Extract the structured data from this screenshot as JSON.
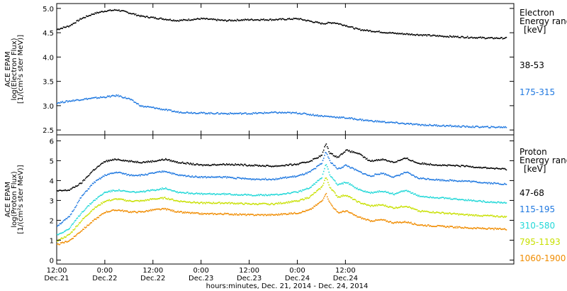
{
  "chart_data": [
    {
      "type": "scatter",
      "panel": "electron",
      "ylabel": [
        "ACE EPAM",
        "log(Electron Flux)",
        "[1/(cm²s ster MeV)]"
      ],
      "ylim": [
        2.4,
        5.1
      ],
      "yticks": [
        2.5,
        3.0,
        3.5,
        4.0,
        4.5,
        5.0
      ],
      "yticklabels": [
        "2.5",
        "3.0",
        "3.5",
        "4.0",
        "4.5",
        "5.0"
      ],
      "legend_title": [
        "Electron",
        "Energy ranges",
        "[keV]"
      ],
      "series": [
        {
          "name": "38-53",
          "color": "#000000",
          "points": [
            [
              0,
              4.58
            ],
            [
              3,
              4.65
            ],
            [
              6,
              4.8
            ],
            [
              9,
              4.9
            ],
            [
              12,
              4.96
            ],
            [
              15,
              4.98
            ],
            [
              18,
              4.92
            ],
            [
              21,
              4.85
            ],
            [
              24,
              4.82
            ],
            [
              30,
              4.76
            ],
            [
              36,
              4.8
            ],
            [
              42,
              4.76
            ],
            [
              48,
              4.78
            ],
            [
              54,
              4.78
            ],
            [
              60,
              4.8
            ],
            [
              66,
              4.7
            ],
            [
              69,
              4.72
            ],
            [
              72,
              4.66
            ],
            [
              75,
              4.58
            ],
            [
              78,
              4.55
            ],
            [
              84,
              4.5
            ],
            [
              90,
              4.47
            ],
            [
              96,
              4.44
            ],
            [
              102,
              4.42
            ],
            [
              108,
              4.4
            ],
            [
              112,
              4.4
            ]
          ]
        },
        {
          "name": "175-315",
          "color": "#1f78e0",
          "points": [
            [
              0,
              3.07
            ],
            [
              6,
              3.14
            ],
            [
              12,
              3.19
            ],
            [
              15,
              3.22
            ],
            [
              18,
              3.15
            ],
            [
              21,
              3.0
            ],
            [
              24,
              2.97
            ],
            [
              30,
              2.88
            ],
            [
              36,
              2.86
            ],
            [
              42,
              2.85
            ],
            [
              48,
              2.85
            ],
            [
              54,
              2.87
            ],
            [
              60,
              2.86
            ],
            [
              66,
              2.8
            ],
            [
              72,
              2.76
            ],
            [
              78,
              2.7
            ],
            [
              84,
              2.66
            ],
            [
              90,
              2.62
            ],
            [
              96,
              2.6
            ],
            [
              102,
              2.58
            ],
            [
              108,
              2.57
            ],
            [
              112,
              2.57
            ]
          ]
        }
      ]
    },
    {
      "type": "scatter",
      "panel": "proton",
      "ylabel": [
        "ACE EPAM",
        "log(Proton Flux)",
        "[1/(cm²s ster MeV)]"
      ],
      "ylim": [
        -0.2,
        6.3
      ],
      "yticks": [
        0,
        1,
        2,
        3,
        4,
        5,
        6
      ],
      "yticklabels": [
        "0",
        "1",
        "2",
        "3",
        "4",
        "5",
        "6"
      ],
      "legend_title": [
        "Proton",
        "Energy ranges",
        "[keV]"
      ],
      "series": [
        {
          "name": "47-68",
          "color": "#000000",
          "points": [
            [
              0,
              3.5
            ],
            [
              3,
              3.55
            ],
            [
              6,
              3.9
            ],
            [
              9,
              4.55
            ],
            [
              12,
              5.0
            ],
            [
              15,
              5.1
            ],
            [
              18,
              5.0
            ],
            [
              21,
              4.95
            ],
            [
              24,
              5.0
            ],
            [
              27,
              5.1
            ],
            [
              30,
              4.95
            ],
            [
              36,
              4.8
            ],
            [
              42,
              4.85
            ],
            [
              48,
              4.8
            ],
            [
              54,
              4.75
            ],
            [
              60,
              4.85
            ],
            [
              63,
              5.0
            ],
            [
              66,
              5.3
            ],
            [
              67,
              5.9
            ],
            [
              68,
              5.4
            ],
            [
              70,
              5.2
            ],
            [
              72,
              5.55
            ],
            [
              75,
              5.4
            ],
            [
              78,
              5.0
            ],
            [
              81,
              5.1
            ],
            [
              84,
              4.95
            ],
            [
              87,
              5.15
            ],
            [
              90,
              4.9
            ],
            [
              96,
              4.8
            ],
            [
              102,
              4.75
            ],
            [
              108,
              4.65
            ],
            [
              112,
              4.6
            ]
          ]
        },
        {
          "name": "115-195",
          "color": "#1f78e0",
          "points": [
            [
              0,
              1.75
            ],
            [
              3,
              2.2
            ],
            [
              6,
              3.2
            ],
            [
              9,
              3.9
            ],
            [
              12,
              4.3
            ],
            [
              15,
              4.45
            ],
            [
              18,
              4.3
            ],
            [
              21,
              4.3
            ],
            [
              24,
              4.4
            ],
            [
              27,
              4.5
            ],
            [
              30,
              4.3
            ],
            [
              36,
              4.2
            ],
            [
              42,
              4.2
            ],
            [
              48,
              4.1
            ],
            [
              54,
              4.1
            ],
            [
              60,
              4.25
            ],
            [
              63,
              4.45
            ],
            [
              66,
              4.9
            ],
            [
              67,
              5.5
            ],
            [
              68,
              5.0
            ],
            [
              70,
              4.6
            ],
            [
              72,
              4.8
            ],
            [
              75,
              4.5
            ],
            [
              78,
              4.25
            ],
            [
              81,
              4.4
            ],
            [
              84,
              4.2
            ],
            [
              87,
              4.45
            ],
            [
              90,
              4.15
            ],
            [
              96,
              4.05
            ],
            [
              102,
              4.0
            ],
            [
              108,
              3.9
            ],
            [
              112,
              3.85
            ]
          ]
        },
        {
          "name": "310-580",
          "color": "#22d8d8",
          "points": [
            [
              0,
              1.3
            ],
            [
              3,
              1.6
            ],
            [
              6,
              2.4
            ],
            [
              9,
              3.0
            ],
            [
              12,
              3.45
            ],
            [
              15,
              3.55
            ],
            [
              18,
              3.45
            ],
            [
              21,
              3.45
            ],
            [
              24,
              3.55
            ],
            [
              27,
              3.65
            ],
            [
              30,
              3.45
            ],
            [
              36,
              3.35
            ],
            [
              42,
              3.35
            ],
            [
              48,
              3.3
            ],
            [
              54,
              3.3
            ],
            [
              60,
              3.45
            ],
            [
              63,
              3.65
            ],
            [
              66,
              4.2
            ],
            [
              67,
              4.9
            ],
            [
              68,
              4.3
            ],
            [
              70,
              3.8
            ],
            [
              72,
              3.95
            ],
            [
              75,
              3.6
            ],
            [
              78,
              3.4
            ],
            [
              81,
              3.5
            ],
            [
              84,
              3.35
            ],
            [
              87,
              3.55
            ],
            [
              90,
              3.25
            ],
            [
              96,
              3.15
            ],
            [
              102,
              3.05
            ],
            [
              108,
              2.95
            ],
            [
              112,
              2.9
            ]
          ]
        },
        {
          "name": "795-1193",
          "color": "#c8e000",
          "points": [
            [
              0,
              1.0
            ],
            [
              3,
              1.3
            ],
            [
              6,
              2.0
            ],
            [
              9,
              2.6
            ],
            [
              12,
              3.0
            ],
            [
              15,
              3.1
            ],
            [
              18,
              3.0
            ],
            [
              21,
              3.0
            ],
            [
              24,
              3.1
            ],
            [
              27,
              3.15
            ],
            [
              30,
              3.0
            ],
            [
              36,
              2.9
            ],
            [
              42,
              2.9
            ],
            [
              48,
              2.85
            ],
            [
              54,
              2.85
            ],
            [
              60,
              3.0
            ],
            [
              63,
              3.2
            ],
            [
              66,
              3.7
            ],
            [
              67,
              4.2
            ],
            [
              68,
              3.7
            ],
            [
              70,
              3.2
            ],
            [
              72,
              3.3
            ],
            [
              75,
              2.95
            ],
            [
              78,
              2.75
            ],
            [
              81,
              2.8
            ],
            [
              84,
              2.65
            ],
            [
              87,
              2.75
            ],
            [
              90,
              2.5
            ],
            [
              96,
              2.4
            ],
            [
              102,
              2.3
            ],
            [
              108,
              2.25
            ],
            [
              112,
              2.2
            ]
          ]
        },
        {
          "name": "1060-1900",
          "color": "#f08c00",
          "points": [
            [
              0,
              0.8
            ],
            [
              3,
              1.0
            ],
            [
              6,
              1.5
            ],
            [
              9,
              2.0
            ],
            [
              12,
              2.45
            ],
            [
              15,
              2.55
            ],
            [
              18,
              2.45
            ],
            [
              21,
              2.45
            ],
            [
              24,
              2.55
            ],
            [
              27,
              2.6
            ],
            [
              30,
              2.45
            ],
            [
              36,
              2.35
            ],
            [
              42,
              2.35
            ],
            [
              48,
              2.3
            ],
            [
              54,
              2.3
            ],
            [
              60,
              2.4
            ],
            [
              63,
              2.55
            ],
            [
              66,
              3.0
            ],
            [
              67,
              3.4
            ],
            [
              68,
              2.9
            ],
            [
              70,
              2.4
            ],
            [
              72,
              2.5
            ],
            [
              75,
              2.2
            ],
            [
              78,
              2.0
            ],
            [
              81,
              2.05
            ],
            [
              84,
              1.9
            ],
            [
              87,
              1.95
            ],
            [
              90,
              1.8
            ],
            [
              96,
              1.72
            ],
            [
              102,
              1.65
            ],
            [
              108,
              1.6
            ],
            [
              112,
              1.58
            ]
          ]
        }
      ]
    }
  ],
  "x_axis": {
    "range_hours": [
      0,
      114
    ],
    "ticks": [
      {
        "hour": 0,
        "time": "12:00",
        "date": "Dec.21"
      },
      {
        "hour": 12,
        "time": "0:00",
        "date": "Dec.22"
      },
      {
        "hour": 24,
        "time": "12:00",
        "date": "Dec.22"
      },
      {
        "hour": 36,
        "time": "0:00",
        "date": "Dec.23"
      },
      {
        "hour": 48,
        "time": "12:00",
        "date": "Dec.23"
      },
      {
        "hour": 60,
        "time": "0:00",
        "date": "Dec.24"
      },
      {
        "hour": 72,
        "time": "12:00",
        "date": "Dec.24"
      }
    ],
    "label": "hours:minutes, Dec. 21, 2014 - Dec. 24, 2014"
  }
}
